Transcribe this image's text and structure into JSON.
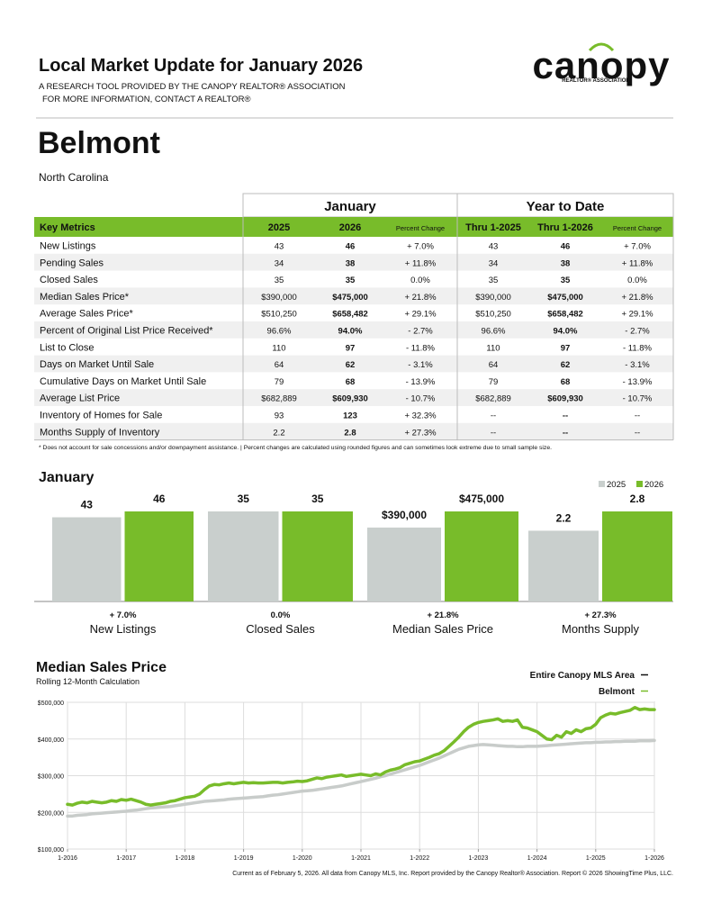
{
  "header": {
    "title": "Local Market Update for January 2026",
    "subtitle_lines": [
      "A RESEARCH TOOL PROVIDED BY THE CANOPY REALTOR® ASSOCIATION",
      "FOR MORE INFORMATION, CONTACT A REALTOR®"
    ]
  },
  "logo": {
    "name": "canopy",
    "tagline": "REALTOR® ASSOCIATION"
  },
  "location": {
    "city": "Belmont",
    "state": "North Carolina"
  },
  "table": {
    "group_headers": [
      "January",
      "Year to Date"
    ],
    "columns": [
      "Key Metrics",
      "2025",
      "2026",
      "Percent Change",
      "Thru 1-2025",
      "Thru 1-2026",
      "Percent Change"
    ],
    "rows": [
      [
        "New Listings",
        "43",
        "46",
        "+ 7.0%",
        "43",
        "46",
        "+ 7.0%"
      ],
      [
        "Pending Sales",
        "34",
        "38",
        "+ 11.8%",
        "34",
        "38",
        "+ 11.8%"
      ],
      [
        "Closed Sales",
        "35",
        "35",
        "0.0%",
        "35",
        "35",
        "0.0%"
      ],
      [
        "Median Sales Price*",
        "$390,000",
        "$475,000",
        "+ 21.8%",
        "$390,000",
        "$475,000",
        "+ 21.8%"
      ],
      [
        "Average Sales Price*",
        "$510,250",
        "$658,482",
        "+ 29.1%",
        "$510,250",
        "$658,482",
        "+ 29.1%"
      ],
      [
        "Percent of Original List Price Received*",
        "96.6%",
        "94.0%",
        "- 2.7%",
        "96.6%",
        "94.0%",
        "- 2.7%"
      ],
      [
        "List to Close",
        "110",
        "97",
        "- 11.8%",
        "110",
        "97",
        "- 11.8%"
      ],
      [
        "Days on Market Until Sale",
        "64",
        "62",
        "- 3.1%",
        "64",
        "62",
        "- 3.1%"
      ],
      [
        "Cumulative Days on Market Until Sale",
        "79",
        "68",
        "- 13.9%",
        "79",
        "68",
        "- 13.9%"
      ],
      [
        "Average List Price",
        "$682,889",
        "$609,930",
        "- 10.7%",
        "$682,889",
        "$609,930",
        "- 10.7%"
      ],
      [
        "Inventory of Homes for Sale",
        "93",
        "123",
        "+ 32.3%",
        "--",
        "--",
        "--"
      ],
      [
        "Months Supply of Inventory",
        "2.2",
        "2.8",
        "+ 27.3%",
        "--",
        "--",
        "--"
      ]
    ]
  },
  "footnote": "* Does not account for sale concessions and/or downpayment assistance. | Percent changes are calculated using rounded figures and can sometimes look extreme due to small sample size.",
  "chart_data": [
    {
      "type": "bar",
      "title": "January",
      "categories": [
        "New Listings",
        "Closed Sales",
        "Median Sales Price",
        "Months Supply"
      ],
      "changes": [
        "+ 7.0%",
        "0.0%",
        "+ 21.8%",
        "+ 27.3%"
      ],
      "series": [
        {
          "name": "2025",
          "color": "#c9cfcd",
          "values": [
            43,
            35,
            390000,
            2.2
          ],
          "value_labels": [
            "43",
            "35",
            "$390,000",
            "2.2"
          ]
        },
        {
          "name": "2026",
          "color": "#78bc2a",
          "values": [
            46,
            35,
            475000,
            2.8
          ],
          "value_labels": [
            "46",
            "35",
            "$475,000",
            "2.8"
          ]
        }
      ]
    },
    {
      "type": "line",
      "title": "Median Sales Price",
      "subtitle": "Rolling 12-Month Calculation",
      "categories": [
        "1-2016",
        null,
        null,
        null,
        null,
        null,
        null,
        null,
        null,
        null,
        null,
        null,
        "1-2017",
        null,
        null,
        null,
        null,
        null,
        null,
        null,
        null,
        null,
        null,
        null,
        "1-2018",
        null,
        null,
        null,
        null,
        null,
        null,
        null,
        null,
        null,
        null,
        null,
        "1-2019",
        null,
        null,
        null,
        null,
        null,
        null,
        null,
        null,
        null,
        null,
        null,
        "1-2020",
        null,
        null,
        null,
        null,
        null,
        null,
        null,
        null,
        null,
        null,
        null,
        "1-2021",
        null,
        null,
        null,
        null,
        null,
        null,
        null,
        null,
        null,
        null,
        null,
        "1-2022",
        null,
        null,
        null,
        null,
        null,
        null,
        null,
        null,
        null,
        null,
        null,
        "1-2023",
        null,
        null,
        null,
        null,
        null,
        null,
        null,
        null,
        null,
        null,
        null,
        "1-2024",
        null,
        null,
        null,
        null,
        null,
        null,
        null,
        null,
        null,
        null,
        null,
        "1-2025",
        null,
        null,
        null,
        null,
        null,
        null,
        null,
        null,
        null,
        null,
        null,
        "1-2026"
      ],
      "series": [
        {
          "name": "Entire Canopy MLS Area",
          "color": "#c8ccca",
          "values": [
            190000,
            190000,
            192000,
            193000,
            194000,
            196000,
            197000,
            198000,
            199000,
            200000,
            201000,
            202000,
            203000,
            205000,
            206000,
            208000,
            210000,
            212000,
            213000,
            214000,
            215000,
            216000,
            218000,
            220000,
            222000,
            224000,
            226000,
            228000,
            230000,
            231000,
            232000,
            233000,
            234000,
            236000,
            237000,
            238000,
            239000,
            240000,
            241000,
            242000,
            243000,
            245000,
            247000,
            248000,
            250000,
            252000,
            254000,
            256000,
            258000,
            259000,
            260000,
            262000,
            264000,
            266000,
            268000,
            270000,
            272000,
            275000,
            278000,
            281000,
            284000,
            287000,
            290000,
            293000,
            297000,
            300000,
            304000,
            308000,
            312000,
            316000,
            320000,
            324000,
            328000,
            333000,
            338000,
            343000,
            348000,
            354000,
            360000,
            366000,
            372000,
            376000,
            380000,
            382000,
            384000,
            385000,
            384000,
            383000,
            382000,
            381000,
            380000,
            380000,
            379000,
            379000,
            380000,
            380000,
            380000,
            381000,
            382000,
            383000,
            384000,
            385000,
            386000,
            387000,
            388000,
            389000,
            390000,
            390000,
            391000,
            391000,
            392000,
            392000,
            393000,
            393000,
            394000,
            394000,
            394000,
            395000,
            395000,
            395000,
            396000
          ]
        },
        {
          "name": "Belmont",
          "color": "#78bc2a",
          "values": [
            222000,
            220000,
            225000,
            228000,
            226000,
            230000,
            228000,
            226000,
            228000,
            232000,
            230000,
            235000,
            233000,
            236000,
            232000,
            228000,
            222000,
            220000,
            222000,
            224000,
            226000,
            230000,
            232000,
            236000,
            240000,
            242000,
            244000,
            250000,
            262000,
            272000,
            276000,
            275000,
            278000,
            280000,
            278000,
            280000,
            282000,
            280000,
            281000,
            280000,
            280000,
            281000,
            282000,
            282000,
            280000,
            282000,
            283000,
            285000,
            284000,
            286000,
            290000,
            294000,
            292000,
            296000,
            298000,
            300000,
            302000,
            298000,
            300000,
            302000,
            304000,
            302000,
            300000,
            305000,
            302000,
            310000,
            315000,
            318000,
            322000,
            330000,
            334000,
            338000,
            340000,
            345000,
            350000,
            356000,
            360000,
            368000,
            380000,
            392000,
            405000,
            420000,
            432000,
            440000,
            445000,
            448000,
            450000,
            452000,
            455000,
            448000,
            450000,
            448000,
            452000,
            432000,
            430000,
            425000,
            420000,
            410000,
            400000,
            398000,
            410000,
            405000,
            420000,
            415000,
            425000,
            420000,
            428000,
            430000,
            440000,
            458000,
            465000,
            470000,
            468000,
            472000,
            475000,
            478000,
            486000,
            480000,
            482000,
            480000,
            480000
          ]
        }
      ],
      "ylim": [
        100000,
        500000
      ],
      "yticks": [
        {
          "value": 100000,
          "label": "$100,000"
        },
        {
          "value": 200000,
          "label": "$200,000"
        },
        {
          "value": 300000,
          "label": "$300,000"
        },
        {
          "value": 400000,
          "label": "$400,000"
        },
        {
          "value": 500000,
          "label": "$500,000"
        }
      ],
      "grid": true
    }
  ],
  "footer": "Current as of February 5, 2026. All data from Canopy MLS, Inc. Report provided by the Canopy Realtor® Association. Report © 2026 ShowingTime Plus, LLC."
}
